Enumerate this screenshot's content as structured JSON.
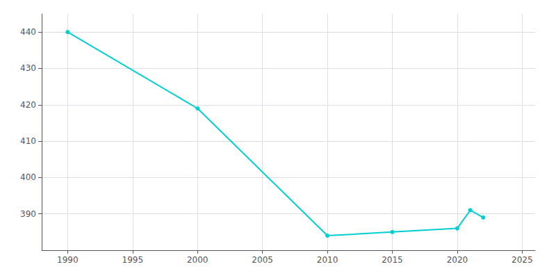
{
  "chart_data": {
    "type": "line",
    "x": [
      1990,
      2000,
      2010,
      2015,
      2020,
      2021,
      2022
    ],
    "values": [
      440,
      419,
      384,
      385,
      386,
      391,
      389
    ],
    "color": "#00CED1",
    "marker": "circle",
    "xlim": [
      1988,
      2026
    ],
    "xticks": [
      1990,
      1995,
      2000,
      2005,
      2010,
      2015,
      2020,
      2025
    ],
    "ylim": [
      380,
      445
    ],
    "yticks": [
      390,
      400,
      410,
      420,
      430,
      440
    ],
    "grid": true
  }
}
